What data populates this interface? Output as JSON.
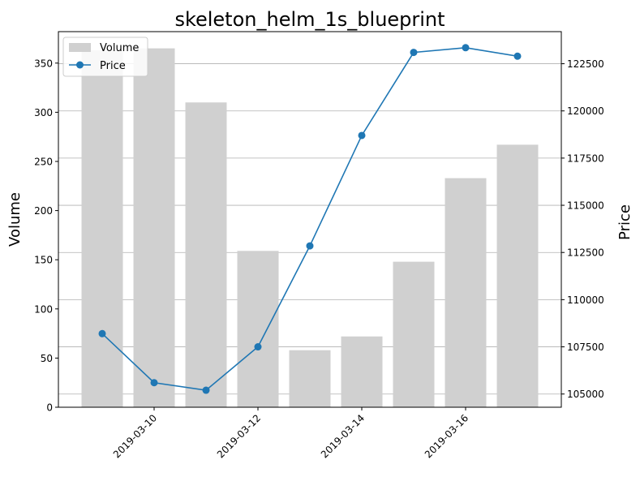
{
  "chart_data": {
    "type": "bar+line",
    "title": "skeleton_helm_1s_blueprint",
    "x": [
      "2019-03-09",
      "2019-03-10",
      "2019-03-11",
      "2019-03-12",
      "2019-03-13",
      "2019-03-14",
      "2019-03-15",
      "2019-03-16",
      "2019-03-17"
    ],
    "xticks": [
      "2019-03-10",
      "2019-03-12",
      "2019-03-14",
      "2019-03-16"
    ],
    "series": [
      {
        "name": "Volume",
        "kind": "bar",
        "axis": "left",
        "color": "#d0d0d0",
        "values": [
          363,
          365,
          310,
          159,
          58,
          72,
          148,
          233,
          267
        ]
      },
      {
        "name": "Price",
        "kind": "line",
        "axis": "right",
        "color": "#1f77b4",
        "values": [
          108200,
          105600,
          105200,
          107500,
          112850,
          118700,
          123100,
          123350,
          122900
        ]
      }
    ],
    "ylabel_left": "Volume",
    "ylabel_right": "Price",
    "ylim_left": [
      0,
      382
    ],
    "ylim_right": [
      104300,
      124200
    ],
    "yticks_left": [
      0,
      50,
      100,
      150,
      200,
      250,
      300,
      350
    ],
    "yticks_right": [
      105000,
      107500,
      110000,
      112500,
      115000,
      117500,
      120000,
      122500
    ],
    "grid": "horizontal, right axis",
    "legend": "top-left"
  }
}
